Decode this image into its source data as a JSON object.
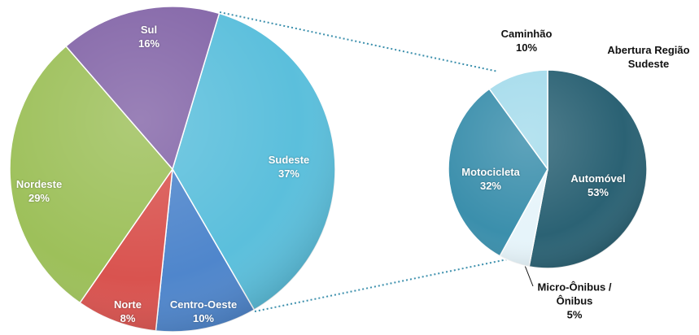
{
  "chart_data": [
    {
      "type": "pie",
      "categories": [
        "Sudeste",
        "Centro-Oeste",
        "Norte",
        "Nordeste",
        "Sul"
      ],
      "values": [
        37,
        10,
        8,
        29,
        16
      ],
      "value_labels": [
        "37%",
        "10%",
        "8%",
        "29%",
        "16%"
      ],
      "colors": [
        "#5bbfdc",
        "#4f86cc",
        "#d9534f",
        "#9dc05a",
        "#8466a8"
      ]
    },
    {
      "type": "pie",
      "title": "Abertura Região Sudeste",
      "categories": [
        "Automóvel",
        "Micro-Ônibus / Ônibus",
        "Motocicleta",
        "Caminhão"
      ],
      "values": [
        53,
        5,
        32,
        10
      ],
      "value_labels": [
        "53%",
        "5%",
        "32%",
        "10%"
      ],
      "colors": [
        "#2b6274",
        "#e6f4fa",
        "#3b8fac",
        "#a6dcec"
      ]
    }
  ]
}
